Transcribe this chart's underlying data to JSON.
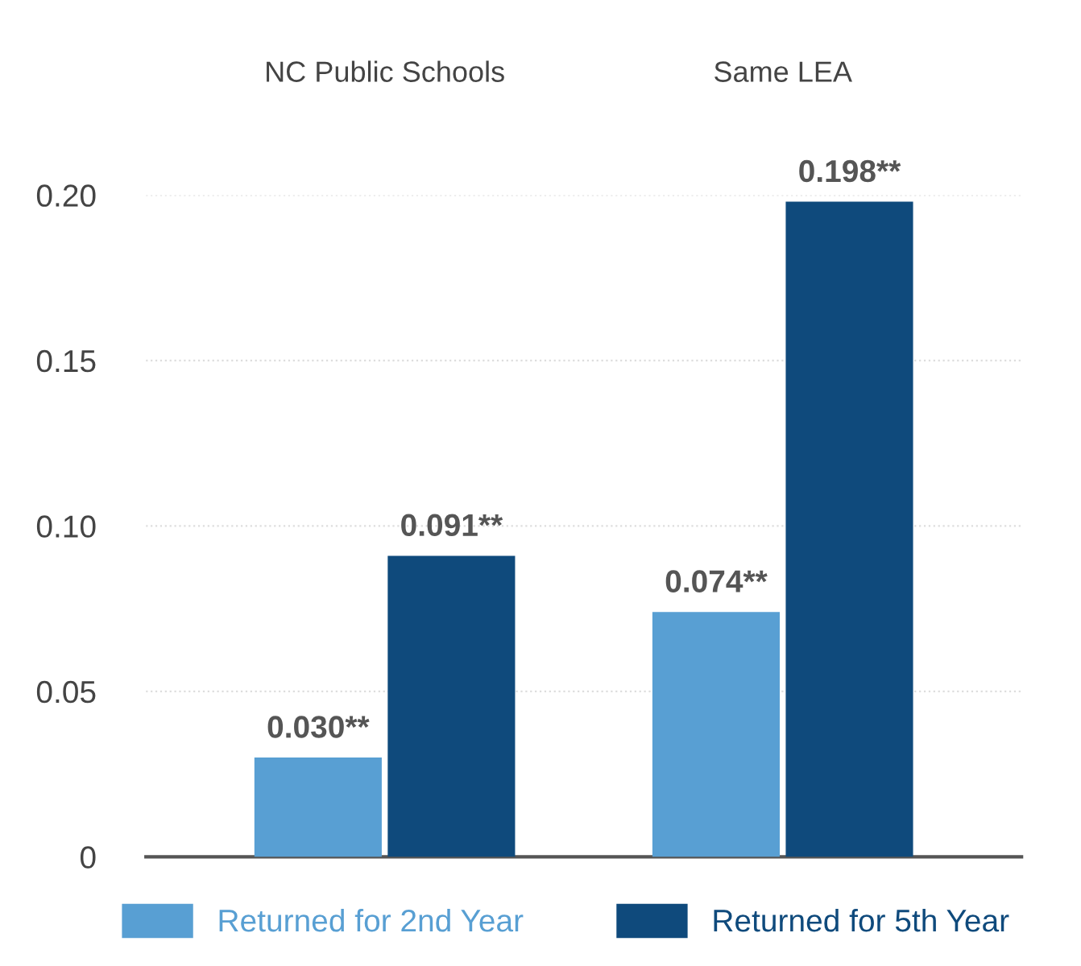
{
  "chart_data": {
    "type": "bar",
    "categories": [
      "NC Public Schools",
      "Same LEA"
    ],
    "series": [
      {
        "name": "Returned for 2nd Year",
        "color": "#589fd3",
        "values": [
          0.03,
          0.074
        ],
        "value_labels": [
          "0.030**",
          "0.074**"
        ]
      },
      {
        "name": "Returned for 5th Year",
        "color": "#0f4a7c",
        "values": [
          0.091,
          0.198
        ],
        "value_labels": [
          "0.091**",
          "0.198**"
        ]
      }
    ],
    "ylim": [
      0,
      0.2
    ],
    "yticks": [
      {
        "value": 0,
        "label": "0"
      },
      {
        "value": 0.05,
        "label": "0.05"
      },
      {
        "value": 0.1,
        "label": "0.10"
      },
      {
        "value": 0.15,
        "label": "0.15"
      },
      {
        "value": 0.2,
        "label": "0.20"
      }
    ],
    "grid": "y",
    "legend": "bottom"
  }
}
